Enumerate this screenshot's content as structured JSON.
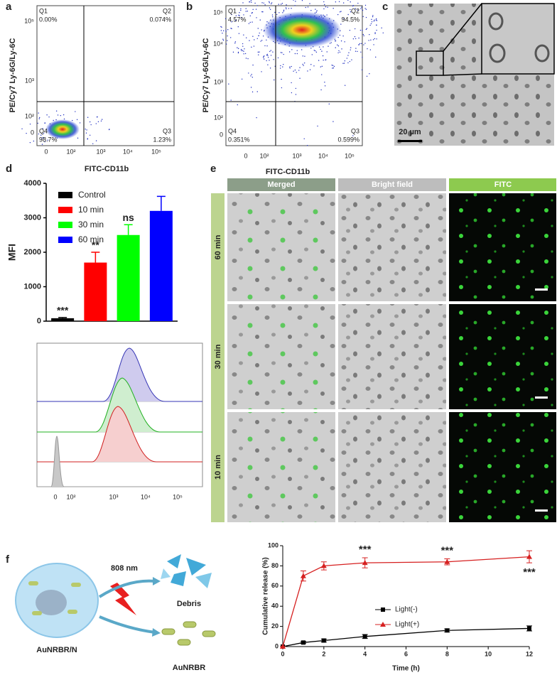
{
  "panel_labels": [
    "a",
    "b",
    "c",
    "d",
    "e",
    "f"
  ],
  "flow": [
    {
      "quadrants": [
        {
          "name": "Q1",
          "percent": "0.00%"
        },
        {
          "name": "Q2",
          "percent": "0.074%"
        },
        {
          "name": "Q4",
          "percent": "98.7%"
        },
        {
          "name": "Q3",
          "percent": "1.23%"
        }
      ],
      "x_label": "FITC-CD11b",
      "y_label": "PE/Cy7 Ly-6G/Ly-6C",
      "x_ticks": [
        "0",
        "10²",
        "10³",
        "10⁴",
        "10⁵"
      ],
      "y_ticks": [
        "10⁵",
        "10³",
        "10²",
        "0"
      ]
    },
    {
      "quadrants": [
        {
          "name": "Q1",
          "percent": "4.57%"
        },
        {
          "name": "Q2",
          "percent": "94.5%"
        },
        {
          "name": "Q4",
          "percent": "0.351%"
        },
        {
          "name": "Q3",
          "percent": "0.599%"
        }
      ],
      "x_label": "FITC-CD11b",
      "y_label": "PE/Cy7 Ly-6G/Ly-6C",
      "x_ticks": [
        "0",
        "10²",
        "10³",
        "10⁴",
        "10⁵"
      ],
      "y_ticks": [
        "10⁵",
        "10⁴",
        "10³",
        "10²",
        "0"
      ]
    }
  ],
  "micrograph": {
    "scale_bar": "20 µm"
  },
  "chart_data": [
    {
      "type": "bar",
      "y_label": "MFI",
      "categories": [
        "Control",
        "10 min",
        "30 min",
        "60 min"
      ],
      "values": [
        85,
        1700,
        2500,
        3200
      ],
      "errors": [
        20,
        300,
        300,
        420
      ],
      "colors": [
        "#000000",
        "#ff0000",
        "#00ff00",
        "#0000ff"
      ],
      "annotations": [
        "***",
        "**",
        "ns",
        null
      ],
      "ylim": [
        0,
        4000
      ],
      "yticks": [
        0,
        1000,
        2000,
        3000,
        4000
      ],
      "legend": "top-left"
    },
    {
      "type": "line",
      "x_label": "Time (h)",
      "y_label": "Cumulative release (%)",
      "x": [
        0,
        1,
        2,
        4,
        8,
        12
      ],
      "series": [
        {
          "name": "Light(-)",
          "color": "#000000",
          "marker": "square",
          "values": [
            0,
            4,
            6,
            10,
            16,
            18
          ],
          "errors": [
            0,
            1,
            1.5,
            2,
            1.5,
            2.5
          ]
        },
        {
          "name": "Light(+)",
          "color": "#d62020",
          "marker": "triangle",
          "values": [
            0,
            70,
            80,
            83,
            84,
            89
          ],
          "errors": [
            0,
            5,
            4,
            5,
            3,
            6
          ]
        }
      ],
      "annotations": [
        {
          "x": 4,
          "text": "***"
        },
        {
          "x": 8,
          "text": "***"
        },
        {
          "x": 12,
          "text": "***"
        }
      ],
      "xlim": [
        0,
        12
      ],
      "xticks": [
        0,
        2,
        4,
        6,
        8,
        10,
        12
      ],
      "ylim": [
        0,
        100
      ],
      "yticks": [
        0,
        20,
        40,
        60,
        80,
        100
      ],
      "legend": "center-right"
    }
  ],
  "histogram": {
    "x_ticks": [
      "0",
      "10²",
      "10³",
      "10⁴",
      "10⁵"
    ]
  },
  "imaging": {
    "columns": [
      "Merged",
      "Bright field",
      "FITC"
    ],
    "rows": [
      "60 min",
      "30 min",
      "10 min"
    ]
  },
  "schematic": {
    "laser": "808 nm",
    "debris": "Debris",
    "complex": "AuNRBR/N",
    "product": "AuNRBR"
  }
}
